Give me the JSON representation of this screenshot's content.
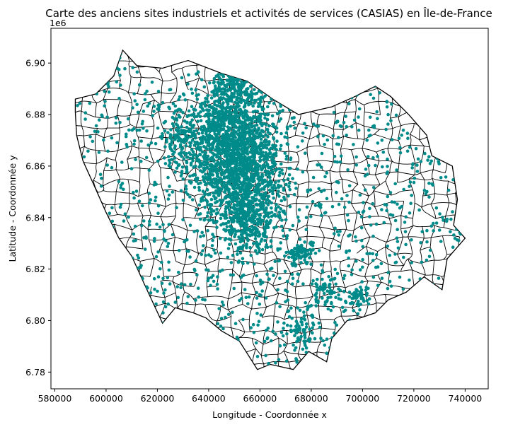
{
  "chart_data": {
    "type": "scatter",
    "title": "Carte des anciens sites industriels et activités de services (CASIAS) en Île-de-France",
    "xlabel": "Longitude - Coordonnée x",
    "ylabel": "Latitude - Coordonnée y",
    "y_offset_label": "1e6",
    "xlim": [
      578500,
      749000
    ],
    "ylim": [
      6.7735,
      6.9135
    ],
    "x_ticks": [
      580000,
      600000,
      620000,
      640000,
      660000,
      680000,
      700000,
      720000,
      740000
    ],
    "x_tick_labels": [
      "580000",
      "600000",
      "620000",
      "640000",
      "660000",
      "680000",
      "700000",
      "720000",
      "740000"
    ],
    "y_ticks": [
      6.78,
      6.8,
      6.82,
      6.84,
      6.86,
      6.88,
      6.9
    ],
    "y_tick_labels": [
      "6.78",
      "6.80",
      "6.82",
      "6.84",
      "6.86",
      "6.88",
      "6.90"
    ],
    "grid": false,
    "legend": "none",
    "colors": {
      "points": "#008b8b",
      "boundaries": "#000000",
      "background": "#ffffff"
    },
    "region_outline_lonlat": [
      [
        588000,
        6.886
      ],
      [
        596000,
        6.888
      ],
      [
        603000,
        6.895
      ],
      [
        606500,
        6.905
      ],
      [
        612000,
        6.899
      ],
      [
        622000,
        6.898
      ],
      [
        632000,
        6.901
      ],
      [
        645000,
        6.896
      ],
      [
        655000,
        6.893
      ],
      [
        665000,
        6.886
      ],
      [
        675000,
        6.88
      ],
      [
        688000,
        6.883
      ],
      [
        697000,
        6.887
      ],
      [
        705000,
        6.891
      ],
      [
        711000,
        6.887
      ],
      [
        718000,
        6.88
      ],
      [
        725000,
        6.872
      ],
      [
        727000,
        6.864
      ],
      [
        735000,
        6.86
      ],
      [
        737000,
        6.847
      ],
      [
        735500,
        6.837
      ],
      [
        740000,
        6.832
      ],
      [
        733000,
        6.824
      ],
      [
        731000,
        6.812
      ],
      [
        724000,
        6.817
      ],
      [
        717000,
        6.811
      ],
      [
        710000,
        6.808
      ],
      [
        705000,
        6.803
      ],
      [
        699000,
        6.801
      ],
      [
        694000,
        6.8
      ],
      [
        688000,
        6.793
      ],
      [
        686000,
        6.784
      ],
      [
        679000,
        6.788
      ],
      [
        673000,
        6.781
      ],
      [
        664000,
        6.783
      ],
      [
        659000,
        6.781
      ],
      [
        652000,
        6.792
      ],
      [
        645000,
        6.796
      ],
      [
        639000,
        6.801
      ],
      [
        634000,
        6.803
      ],
      [
        627000,
        6.805
      ],
      [
        622000,
        6.799
      ],
      [
        615000,
        6.814
      ],
      [
        610000,
        6.825
      ],
      [
        605000,
        6.832
      ],
      [
        600000,
        6.842
      ],
      [
        596000,
        6.851
      ],
      [
        591000,
        6.862
      ],
      [
        588500,
        6.872
      ],
      [
        588000,
        6.881
      ]
    ],
    "dense_clusters": [
      {
        "lon": 651000,
        "lat": 6.862,
        "spread_lon": 9000,
        "spread_lat": 0.012,
        "count": 1400
      },
      {
        "lon": 646000,
        "lat": 6.878,
        "spread_lon": 6000,
        "spread_lat": 0.008,
        "count": 380
      },
      {
        "lon": 656000,
        "lat": 6.84,
        "spread_lon": 6000,
        "spread_lat": 0.008,
        "count": 350
      },
      {
        "lon": 676000,
        "lat": 6.826,
        "spread_lon": 3000,
        "spread_lat": 0.003,
        "count": 90
      },
      {
        "lon": 652000,
        "lat": 6.891,
        "spread_lon": 5000,
        "spread_lat": 0.003,
        "count": 120
      },
      {
        "lon": 628000,
        "lat": 6.87,
        "spread_lon": 4000,
        "spread_lat": 0.006,
        "count": 100
      },
      {
        "lon": 686000,
        "lat": 6.811,
        "spread_lon": 3000,
        "spread_lat": 0.003,
        "count": 60
      },
      {
        "lon": 698000,
        "lat": 6.809,
        "spread_lon": 2500,
        "spread_lat": 0.002,
        "count": 50
      },
      {
        "lon": 676000,
        "lat": 6.796,
        "spread_lon": 3000,
        "spread_lat": 0.004,
        "count": 60
      }
    ],
    "background_density": 1500
  }
}
